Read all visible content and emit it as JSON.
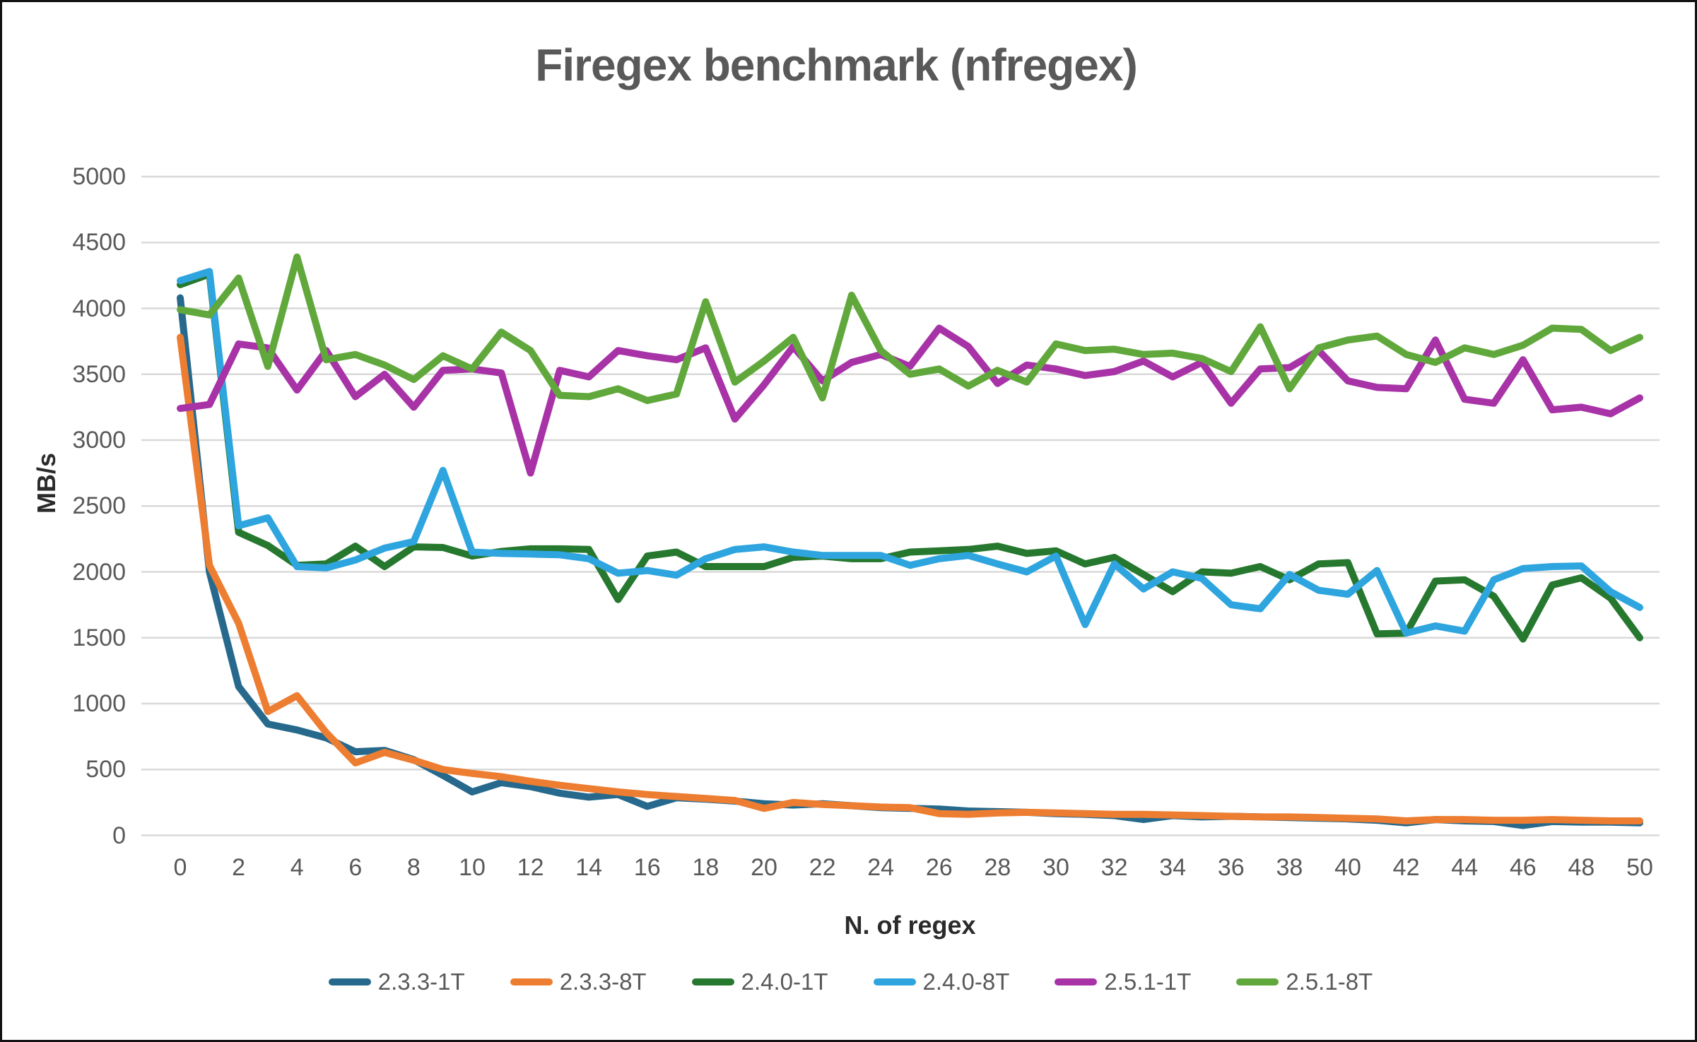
{
  "chart_data": {
    "type": "line",
    "title": "Firegex benchmark (nfregex)",
    "xlabel": "N. of regex",
    "ylabel": "MB/s",
    "xlim": [
      0,
      50
    ],
    "ylim": [
      0,
      5000
    ],
    "grid": "horizontal-only",
    "gridline_color": "#d9d9d9",
    "text_color": "#595959",
    "legend_position": "bottom",
    "y_ticks": [
      0,
      500,
      1000,
      1500,
      2000,
      2500,
      3000,
      3500,
      4000,
      4500,
      5000
    ],
    "x_ticks": [
      0,
      2,
      4,
      6,
      8,
      10,
      12,
      14,
      16,
      18,
      20,
      22,
      24,
      26,
      28,
      30,
      32,
      34,
      36,
      38,
      40,
      42,
      44,
      46,
      48,
      50
    ],
    "x": [
      0,
      1,
      2,
      3,
      4,
      5,
      6,
      7,
      8,
      9,
      10,
      11,
      12,
      13,
      14,
      15,
      16,
      17,
      18,
      19,
      20,
      21,
      22,
      23,
      24,
      25,
      26,
      27,
      28,
      29,
      30,
      31,
      32,
      33,
      34,
      35,
      36,
      37,
      38,
      39,
      40,
      41,
      42,
      43,
      44,
      45,
      46,
      47,
      48,
      49,
      50
    ],
    "series": [
      {
        "name": "2.3.3-1T",
        "color": "#26698C",
        "values": [
          4080,
          2000,
          1130,
          845,
          800,
          740,
          635,
          645,
          575,
          455,
          330,
          400,
          370,
          320,
          290,
          310,
          220,
          285,
          275,
          260,
          240,
          230,
          240,
          225,
          210,
          205,
          200,
          185,
          180,
          175,
          165,
          160,
          150,
          120,
          150,
          140,
          145,
          140,
          135,
          130,
          125,
          115,
          95,
          120,
          110,
          105,
          75,
          105,
          100,
          100,
          95
        ]
      },
      {
        "name": "2.3.3-8T",
        "color": "#ED7D31",
        "values": [
          3780,
          2050,
          1610,
          940,
          1060,
          780,
          550,
          630,
          570,
          500,
          470,
          445,
          410,
          380,
          355,
          330,
          310,
          295,
          280,
          265,
          205,
          250,
          235,
          225,
          215,
          210,
          165,
          160,
          170,
          175,
          170,
          165,
          160,
          160,
          155,
          150,
          145,
          140,
          140,
          135,
          130,
          125,
          110,
          120,
          120,
          115,
          115,
          120,
          115,
          110,
          110
        ]
      },
      {
        "name": "2.4.0-1T",
        "color": "#26782F",
        "values": [
          4180,
          4260,
          2300,
          2200,
          2050,
          2060,
          2195,
          2040,
          2190,
          2185,
          2120,
          2155,
          2175,
          2175,
          2170,
          1790,
          2120,
          2150,
          2040,
          2040,
          2040,
          2110,
          2120,
          2100,
          2100,
          2150,
          2160,
          2170,
          2195,
          2140,
          2160,
          2060,
          2110,
          1980,
          1850,
          2000,
          1990,
          2040,
          1940,
          2060,
          2070,
          1530,
          1535,
          1930,
          1940,
          1815,
          1490,
          1900,
          1955,
          1800,
          1500
        ]
      },
      {
        "name": "2.4.0-8T",
        "color": "#2EA5DE",
        "values": [
          4210,
          4280,
          2350,
          2410,
          2040,
          2030,
          2090,
          2180,
          2230,
          2770,
          2150,
          2140,
          2135,
          2130,
          2100,
          1990,
          2010,
          1975,
          2100,
          2170,
          2190,
          2150,
          2125,
          2125,
          2125,
          2050,
          2100,
          2125,
          2060,
          2000,
          2120,
          1600,
          2060,
          1870,
          2000,
          1950,
          1750,
          1720,
          1980,
          1860,
          1830,
          2010,
          1535,
          1590,
          1550,
          1940,
          2025,
          2040,
          2045,
          1850,
          1730
        ]
      },
      {
        "name": "2.5.1-1T",
        "color": "#A733A7",
        "values": [
          3240,
          3270,
          3730,
          3700,
          3380,
          3680,
          3330,
          3500,
          3250,
          3530,
          3540,
          3510,
          2750,
          3530,
          3480,
          3680,
          3640,
          3610,
          3700,
          3160,
          3420,
          3710,
          3450,
          3590,
          3650,
          3560,
          3850,
          3710,
          3430,
          3570,
          3540,
          3490,
          3520,
          3600,
          3480,
          3590,
          3280,
          3540,
          3550,
          3680,
          3450,
          3400,
          3390,
          3760,
          3310,
          3280,
          3610,
          3230,
          3250,
          3200,
          3320
        ]
      },
      {
        "name": "2.5.1-8T",
        "color": "#61A83C",
        "values": [
          3990,
          3950,
          4230,
          3560,
          4390,
          3610,
          3650,
          3570,
          3460,
          3640,
          3540,
          3820,
          3680,
          3340,
          3330,
          3390,
          3300,
          3350,
          4050,
          3440,
          3600,
          3780,
          3320,
          4100,
          3680,
          3500,
          3540,
          3410,
          3530,
          3440,
          3730,
          3680,
          3690,
          3650,
          3660,
          3620,
          3520,
          3860,
          3390,
          3700,
          3760,
          3790,
          3650,
          3590,
          3700,
          3650,
          3720,
          3850,
          3840,
          3680,
          3780
        ]
      }
    ]
  }
}
